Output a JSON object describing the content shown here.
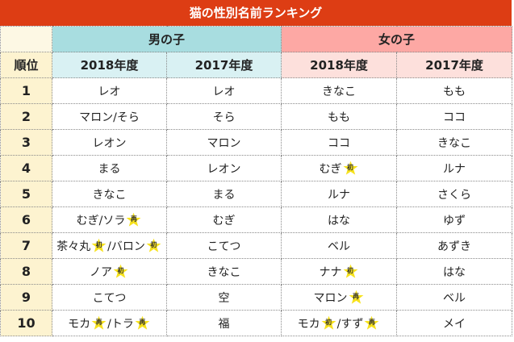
{
  "title": "猫の性別名前ランキング",
  "header": {
    "rank_label": "順位",
    "male_group": "男の子",
    "female_group": "女の子",
    "year_2018": "2018年度",
    "year_2017": "2017年度"
  },
  "legend_marks": {
    "new": "初",
    "again": "再"
  },
  "star_color": "#f7e21c",
  "rows": [
    {
      "rank": "1",
      "m2018": [
        {
          "t": "レオ"
        }
      ],
      "m2017": [
        {
          "t": "レオ"
        }
      ],
      "f2018": [
        {
          "t": "きなこ"
        }
      ],
      "f2017": [
        {
          "t": "もも"
        }
      ]
    },
    {
      "rank": "2",
      "m2018": [
        {
          "t": "マロン/そら"
        }
      ],
      "m2017": [
        {
          "t": "そら"
        }
      ],
      "f2018": [
        {
          "t": "もも"
        }
      ],
      "f2017": [
        {
          "t": "ココ"
        }
      ]
    },
    {
      "rank": "3",
      "m2018": [
        {
          "t": "レオン"
        }
      ],
      "m2017": [
        {
          "t": "マロン"
        }
      ],
      "f2018": [
        {
          "t": "ココ"
        }
      ],
      "f2017": [
        {
          "t": "きなこ"
        }
      ]
    },
    {
      "rank": "4",
      "m2018": [
        {
          "t": "まる"
        }
      ],
      "m2017": [
        {
          "t": "レオン"
        }
      ],
      "f2018": [
        {
          "t": "むぎ"
        },
        {
          "mark": "初"
        }
      ],
      "f2017": [
        {
          "t": "ルナ"
        }
      ]
    },
    {
      "rank": "5",
      "m2018": [
        {
          "t": "きなこ"
        }
      ],
      "m2017": [
        {
          "t": "まる"
        }
      ],
      "f2018": [
        {
          "t": "ルナ"
        }
      ],
      "f2017": [
        {
          "t": "さくら"
        }
      ]
    },
    {
      "rank": "6",
      "m2018": [
        {
          "t": "むぎ/ソラ"
        },
        {
          "mark": "再"
        }
      ],
      "m2017": [
        {
          "t": "むぎ"
        }
      ],
      "f2018": [
        {
          "t": "はな"
        }
      ],
      "f2017": [
        {
          "t": "ゆず"
        }
      ]
    },
    {
      "rank": "7",
      "m2018": [
        {
          "t": "茶々丸"
        },
        {
          "mark": "初"
        },
        {
          "t": "/バロン"
        },
        {
          "mark": "初"
        }
      ],
      "m2017": [
        {
          "t": "こてつ"
        }
      ],
      "f2018": [
        {
          "t": "ベル"
        }
      ],
      "f2017": [
        {
          "t": "あずき"
        }
      ]
    },
    {
      "rank": "8",
      "m2018": [
        {
          "t": "ノア"
        },
        {
          "mark": "初"
        }
      ],
      "m2017": [
        {
          "t": "きなこ"
        }
      ],
      "f2018": [
        {
          "t": "ナナ"
        },
        {
          "mark": "初"
        }
      ],
      "f2017": [
        {
          "t": "はな"
        }
      ]
    },
    {
      "rank": "9",
      "m2018": [
        {
          "t": "こてつ"
        }
      ],
      "m2017": [
        {
          "t": "空"
        }
      ],
      "f2018": [
        {
          "t": "マロン"
        },
        {
          "mark": "再"
        }
      ],
      "f2017": [
        {
          "t": "ベル"
        }
      ]
    },
    {
      "rank": "10",
      "m2018": [
        {
          "t": "モカ"
        },
        {
          "mark": "再"
        },
        {
          "t": "/トラ"
        },
        {
          "mark": "再"
        }
      ],
      "m2017": [
        {
          "t": "福"
        }
      ],
      "f2018": [
        {
          "t": "モカ"
        },
        {
          "mark": "初"
        },
        {
          "t": "/すず"
        },
        {
          "mark": "再"
        }
      ],
      "f2017": [
        {
          "t": "メイ"
        }
      ]
    }
  ]
}
